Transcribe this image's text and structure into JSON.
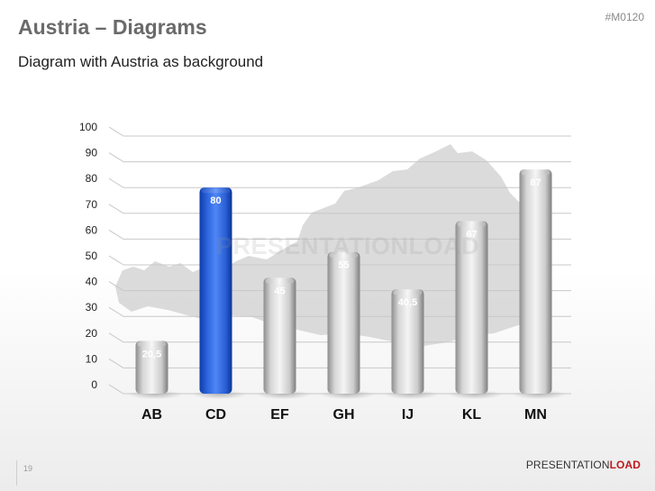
{
  "slide": {
    "title": "Austria – Diagrams",
    "code": "#M0120",
    "subtitle": "Diagram with Austria as background",
    "page_number": "19",
    "watermark": "PRESENTATIONLOAD",
    "brand_part1": "PRESENTATION",
    "brand_part2": "LOAD"
  },
  "colors": {
    "highlight": "#2a5fd6",
    "bar": "#c8c8c8",
    "map": "#cfcfcf",
    "brand_accent": "#c0191c"
  },
  "chart_data": {
    "type": "bar",
    "categories": [
      "AB",
      "CD",
      "EF",
      "GH",
      "IJ",
      "KL",
      "MN"
    ],
    "values": [
      20.5,
      80,
      45,
      55,
      40.5,
      67,
      87
    ],
    "value_labels": [
      "20,5",
      "80",
      "45",
      "55",
      "40,5",
      "67",
      "87"
    ],
    "highlight_index": 1,
    "ylim": [
      0,
      100
    ],
    "yticks": [
      0,
      10,
      20,
      30,
      40,
      50,
      60,
      70,
      80,
      90,
      100
    ],
    "grid": true,
    "style": "3d-cylinder",
    "background": "map of Austria"
  }
}
